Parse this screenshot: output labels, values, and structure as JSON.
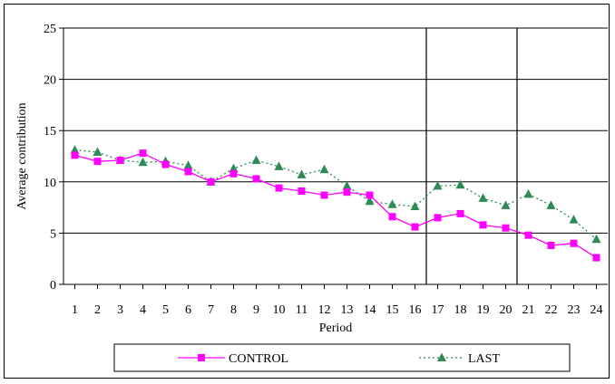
{
  "chart_data": {
    "type": "line",
    "title": "",
    "xlabel": "Period",
    "ylabel": "Average contribution",
    "x": [
      1,
      2,
      3,
      4,
      5,
      6,
      7,
      8,
      9,
      10,
      11,
      12,
      13,
      14,
      15,
      16,
      17,
      18,
      19,
      20,
      21,
      22,
      23,
      24
    ],
    "x_tick_labels": [
      "1",
      "2",
      "3",
      "4",
      "5",
      "6",
      "7",
      "8",
      "9",
      "10",
      "11",
      "12",
      "13",
      "14",
      "15",
      "16",
      "17",
      "18",
      "19",
      "20",
      "21",
      "22",
      "23",
      "24"
    ],
    "ylim": [
      0,
      25
    ],
    "y_ticks": [
      0,
      5,
      10,
      15,
      20,
      25
    ],
    "y_tick_labels": [
      "0",
      "5",
      "10",
      "15",
      "20",
      "25"
    ],
    "grid": "horizontal",
    "legend_position": "bottom",
    "vertical_lines_after_period": [
      16.5,
      20.5
    ],
    "series": [
      {
        "name": "CONTROL",
        "color": "#ff00ff",
        "marker": "square",
        "line_style": "solid",
        "values": [
          12.6,
          12.0,
          12.1,
          12.8,
          11.7,
          11.0,
          10.0,
          10.8,
          10.3,
          9.4,
          9.1,
          8.7,
          9.0,
          8.7,
          6.6,
          5.6,
          6.5,
          6.9,
          5.8,
          5.5,
          4.8,
          3.8,
          4.0,
          2.6
        ]
      },
      {
        "name": "LAST",
        "color": "#2e8b57",
        "marker": "triangle",
        "line_style": "dotted",
        "values": [
          13.1,
          12.9,
          12.1,
          11.9,
          12.0,
          11.6,
          10.0,
          11.3,
          12.1,
          11.5,
          10.7,
          11.2,
          9.6,
          8.1,
          7.8,
          7.6,
          9.6,
          9.7,
          8.4,
          7.7,
          8.8,
          7.7,
          6.3,
          4.4
        ]
      }
    ]
  }
}
